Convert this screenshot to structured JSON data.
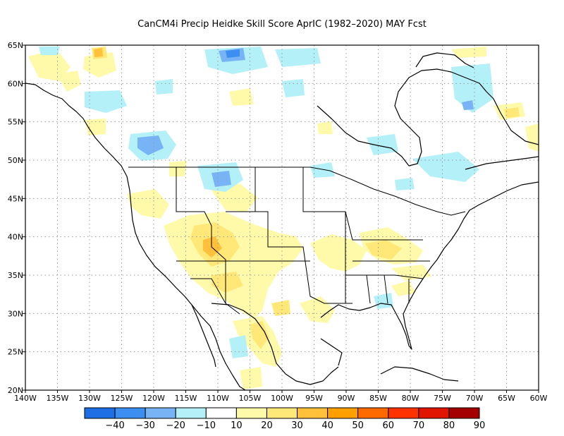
{
  "title": "CanCM4i Precip Heidke Skill Score AprIC (1982–2020) MAY Fcst",
  "map": {
    "lon_labels": [
      "140W",
      "135W",
      "130W",
      "125W",
      "120W",
      "115W",
      "110W",
      "105W",
      "100W",
      "95W",
      "90W",
      "85W",
      "80W",
      "75W",
      "70W",
      "65W",
      "60W"
    ],
    "lat_labels": [
      "20N",
      "25N",
      "30N",
      "35N",
      "40N",
      "45N",
      "50N",
      "55N",
      "60N",
      "65N"
    ],
    "lon_range": [
      -140,
      -60
    ],
    "lat_range": [
      20,
      65
    ],
    "grid": true
  },
  "legend": {
    "labels": [
      "−40",
      "−30",
      "−20",
      "−10",
      "10",
      "20",
      "30",
      "40",
      "50",
      "60",
      "70",
      "80",
      "90"
    ],
    "colors": [
      "#1e6fe6",
      "#3c8ff0",
      "#78b4f5",
      "#b4f0f8",
      "#ffffff",
      "#fffaaa",
      "#ffe878",
      "#ffc03c",
      "#ff9f00",
      "#ff6a00",
      "#ff3200",
      "#e11400",
      "#a50000"
    ]
  }
}
